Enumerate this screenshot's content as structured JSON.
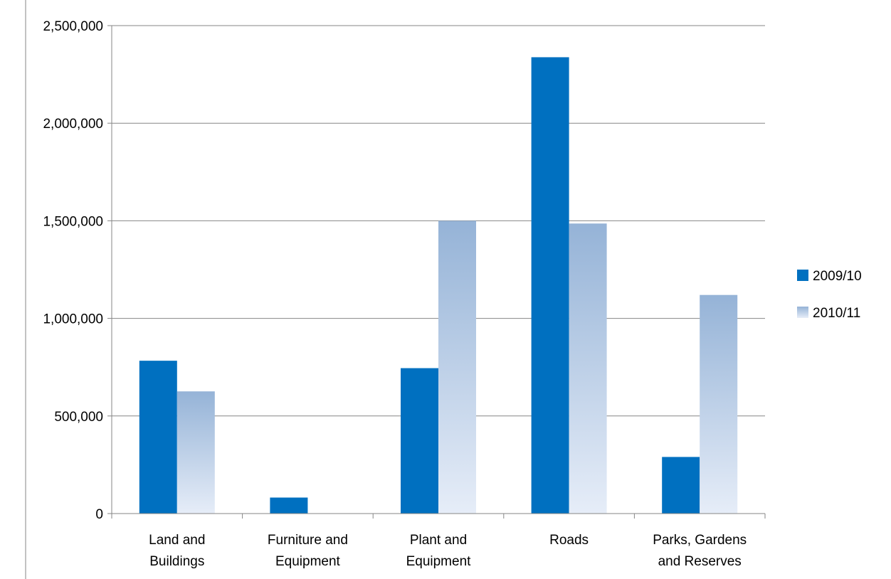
{
  "chart_data": {
    "type": "bar",
    "title": "",
    "xlabel": "",
    "ylabel": "",
    "categories": [
      [
        "Land and",
        "Buildings"
      ],
      [
        "Furniture and",
        "Equipment"
      ],
      [
        "Plant and",
        "Equipment"
      ],
      [
        "Roads"
      ],
      [
        "Parks, Gardens",
        "and Reserves"
      ]
    ],
    "series": [
      {
        "name": "2009/10",
        "values": [
          783000,
          82000,
          745000,
          2338000,
          290000
        ],
        "color": "#0070c0"
      },
      {
        "name": "2010/11",
        "values": [
          626000,
          0,
          1500000,
          1486000,
          1120000
        ],
        "color_top": "#95b3d7",
        "color_bottom": "#e6edf8"
      }
    ],
    "ylim": [
      0,
      2500000
    ],
    "yticks": [
      0,
      500000,
      1000000,
      1500000,
      2000000,
      2500000
    ],
    "ytick_labels": [
      "0",
      "500,000",
      "1,000,000",
      "1,500,000",
      "2,000,000",
      "2,500,000"
    ],
    "grid": true,
    "legend_position": "right"
  }
}
